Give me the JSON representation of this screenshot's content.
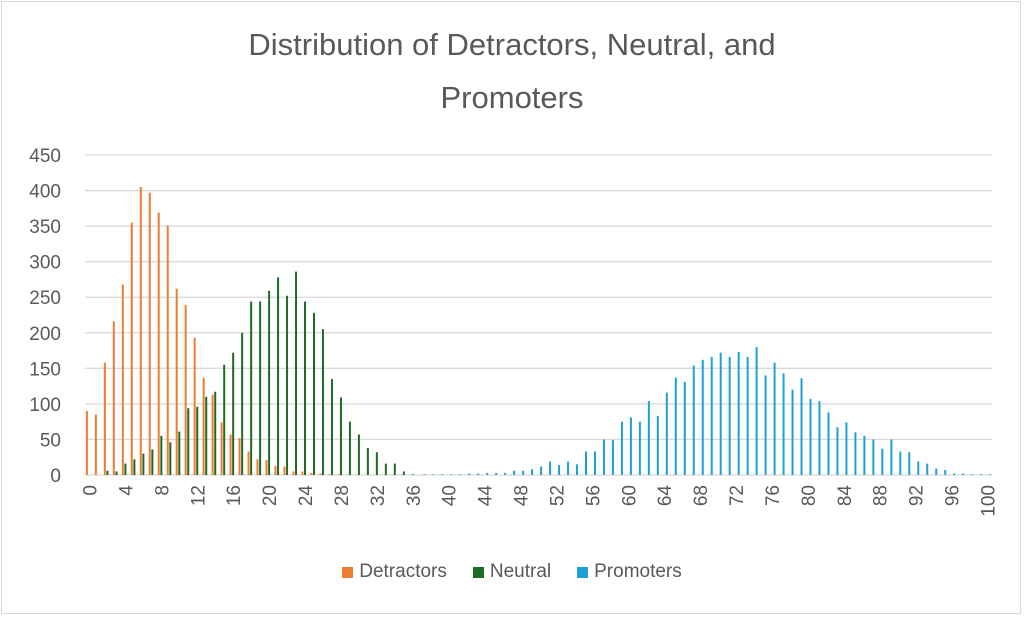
{
  "chart_data": {
    "type": "bar",
    "title_line1": "Distribution of Detractors, Neutral, and",
    "title_line2": "Promoters",
    "xlabel": "",
    "ylabel": "",
    "ylim": [
      0,
      450
    ],
    "yticks": [
      0,
      50,
      100,
      150,
      200,
      250,
      300,
      350,
      400,
      450
    ],
    "xlim": [
      0,
      100
    ],
    "xtick_step": 4,
    "grid": true,
    "legend_position": "bottom",
    "series": [
      {
        "name": "Detractors",
        "color": "#ed7d31",
        "values": [
          90,
          85,
          158,
          216,
          268,
          355,
          405,
          397,
          369,
          351,
          262,
          239,
          193,
          137,
          113,
          74,
          57,
          52,
          33,
          22,
          21,
          13,
          12,
          5,
          5,
          3,
          2,
          1,
          1,
          0,
          0,
          0,
          0,
          0,
          0,
          0,
          0,
          0,
          0,
          0,
          0,
          0,
          0,
          0,
          0,
          0,
          0,
          0,
          0,
          0,
          0,
          0,
          0,
          0,
          0,
          0,
          0,
          0,
          0,
          0,
          0,
          0,
          0,
          0,
          0,
          0,
          0,
          0,
          0,
          0,
          0,
          0,
          0,
          0,
          0,
          0,
          0,
          0,
          0,
          0,
          0,
          0,
          0,
          0,
          0,
          0,
          0,
          0,
          0,
          0,
          0,
          0,
          0,
          0,
          0,
          0,
          0,
          0,
          0,
          0,
          0
        ]
      },
      {
        "name": "Neutral",
        "color": "#1e6b24",
        "values": [
          0,
          0,
          6,
          5,
          16,
          22,
          30,
          36,
          55,
          46,
          61,
          94,
          96,
          110,
          117,
          155,
          172,
          200,
          244,
          244,
          259,
          278,
          252,
          286,
          244,
          228,
          205,
          135,
          109,
          75,
          57,
          38,
          32,
          16,
          16,
          5,
          1,
          0,
          0,
          0,
          0,
          0,
          0,
          0,
          0,
          0,
          0,
          0,
          0,
          0,
          0,
          0,
          0,
          0,
          0,
          0,
          0,
          0,
          0,
          0,
          0,
          0,
          0,
          0,
          0,
          0,
          0,
          0,
          0,
          0,
          0,
          0,
          0,
          0,
          0,
          0,
          0,
          0,
          0,
          0,
          0,
          0,
          0,
          0,
          0,
          0,
          0,
          0,
          0,
          0,
          0,
          0,
          0,
          0,
          0,
          0,
          0,
          0,
          0,
          0,
          0
        ]
      },
      {
        "name": "Promoters",
        "color": "#1ea0d4",
        "values": [
          0,
          0,
          0,
          0,
          0,
          0,
          0,
          0,
          0,
          0,
          0,
          0,
          0,
          0,
          0,
          0,
          0,
          0,
          0,
          0,
          0,
          0,
          0,
          0,
          0,
          0,
          0,
          0,
          0,
          0,
          0,
          0,
          0,
          0,
          0,
          0,
          0,
          1,
          1,
          1,
          1,
          1,
          2,
          2,
          3,
          3,
          3,
          6,
          6,
          8,
          12,
          19,
          14,
          19,
          15,
          33,
          33,
          50,
          49,
          75,
          81,
          75,
          104,
          83,
          116,
          137,
          131,
          154,
          162,
          166,
          172,
          166,
          173,
          166,
          180,
          140,
          158,
          143,
          120,
          136,
          107,
          104,
          88,
          67,
          74,
          60,
          55,
          50,
          37,
          50,
          33,
          32,
          19,
          16,
          9,
          7,
          2,
          2,
          1,
          1,
          1
        ]
      }
    ]
  }
}
